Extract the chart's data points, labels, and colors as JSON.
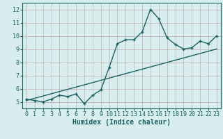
{
  "xlabel": "Humidex (Indice chaleur)",
  "ylabel": "",
  "bg_color": "#d8eeee",
  "line_color": "#1a6060",
  "grid_color": "#c0b0b0",
  "x_data": [
    0,
    1,
    2,
    3,
    4,
    5,
    6,
    7,
    8,
    9,
    10,
    11,
    12,
    13,
    14,
    15,
    16,
    17,
    18,
    19,
    20,
    21,
    22,
    23
  ],
  "y_data": [
    5.2,
    5.1,
    5.0,
    5.2,
    5.5,
    5.4,
    5.6,
    4.85,
    5.5,
    5.9,
    7.6,
    9.4,
    9.7,
    9.7,
    10.3,
    12.0,
    11.3,
    9.85,
    9.35,
    9.0,
    9.1,
    9.6,
    9.4,
    10.0
  ],
  "trend_x": [
    0,
    23
  ],
  "trend_y": [
    5.1,
    9.0
  ],
  "xlim": [
    -0.5,
    23.5
  ],
  "ylim": [
    4.5,
    12.5
  ],
  "yticks": [
    5,
    6,
    7,
    8,
    9,
    10,
    11,
    12
  ],
  "xticks": [
    0,
    1,
    2,
    3,
    4,
    5,
    6,
    7,
    8,
    9,
    10,
    11,
    12,
    13,
    14,
    15,
    16,
    17,
    18,
    19,
    20,
    21,
    22,
    23
  ],
  "marker_size": 2.5,
  "line_width": 1.0,
  "font_size": 6,
  "xlabel_fontsize": 7
}
